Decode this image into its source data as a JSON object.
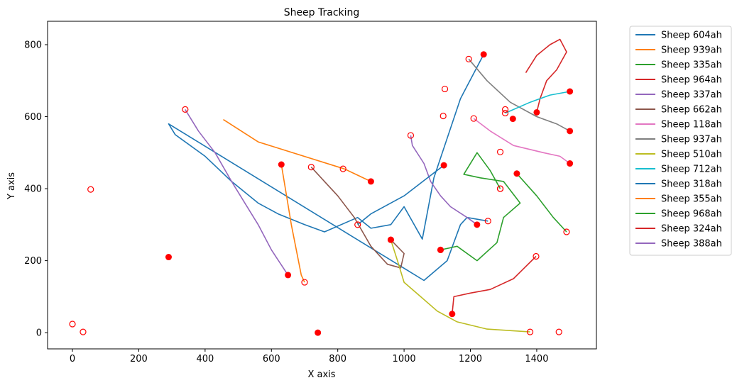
{
  "chart_data": {
    "type": "line",
    "title": "Sheep Tracking",
    "xlabel": "X axis",
    "ylabel": "Y axis",
    "xlim": [
      -75,
      1580
    ],
    "ylim": [
      -45,
      865
    ],
    "xticks": [
      0,
      200,
      400,
      600,
      800,
      1000,
      1200,
      1400
    ],
    "yticks": [
      0,
      200,
      400,
      600,
      800
    ],
    "xtick_labels": [
      "0",
      "200",
      "400",
      "600",
      "800",
      "1000",
      "1200",
      "1400"
    ],
    "ytick_labels": [
      "0",
      "200",
      "400",
      "600",
      "800"
    ],
    "grid": false,
    "legend_position": "outside-top-right",
    "marker_notes": "filled red circle = current position, hollow red circle = start position",
    "series": [
      {
        "name": "Sheep 604ah",
        "color": "#1f77b4",
        "points": [
          [
            1240,
            773
          ],
          [
            1170,
            650
          ],
          [
            1090,
            430
          ],
          [
            1055,
            260
          ],
          [
            1000,
            350
          ],
          [
            960,
            300
          ],
          [
            900,
            290
          ],
          [
            860,
            320
          ],
          [
            760,
            280
          ],
          [
            700,
            300
          ],
          [
            620,
            330
          ],
          [
            560,
            360
          ],
          [
            480,
            420
          ],
          [
            400,
            490
          ],
          [
            310,
            550
          ],
          [
            290,
            580
          ],
          [
            1060,
            145
          ],
          [
            1130,
            200
          ],
          [
            1170,
            300
          ],
          [
            1190,
            320
          ],
          [
            1253,
            310
          ]
        ],
        "current": [
          1240,
          773
        ],
        "start": [
          1253,
          310
        ]
      },
      {
        "name": "Sheep 939ah",
        "color": "#ff7f0e",
        "points": [
          [
            455,
            592
          ],
          [
            560,
            530
          ],
          [
            820,
            455
          ],
          [
            900,
            420
          ]
        ],
        "current": [
          900,
          420
        ],
        "start": [
          816,
          455
        ]
      },
      {
        "name": "Sheep 335ah",
        "color": "#2ca02c",
        "points": [
          [
            1110,
            230
          ],
          [
            1160,
            240
          ],
          [
            1220,
            200
          ],
          [
            1280,
            250
          ],
          [
            1300,
            320
          ],
          [
            1350,
            360
          ],
          [
            1300,
            420
          ],
          [
            1230,
            430
          ],
          [
            1180,
            440
          ],
          [
            1220,
            500
          ],
          [
            1260,
            450
          ],
          [
            1290,
            400
          ]
        ],
        "current": [
          1110,
          230
        ],
        "start": [
          1290,
          400
        ]
      },
      {
        "name": "Sheep 964ah",
        "color": "#d62728",
        "points": [
          [
            1367,
            722
          ],
          [
            1400,
            770
          ],
          [
            1440,
            800
          ],
          [
            1470,
            815
          ],
          [
            1490,
            780
          ],
          [
            1460,
            730
          ],
          [
            1430,
            700
          ],
          [
            1410,
            650
          ],
          [
            1400,
            612
          ]
        ],
        "current": [
          1400,
          612
        ],
        "start": [
          1305,
          620
        ]
      },
      {
        "name": "Sheep 337ah",
        "color": "#9467bd",
        "points": [
          [
            1020,
            548
          ],
          [
            1025,
            520
          ],
          [
            1060,
            470
          ],
          [
            1080,
            420
          ],
          [
            1110,
            380
          ],
          [
            1140,
            350
          ],
          [
            1190,
            320
          ],
          [
            1220,
            300
          ]
        ],
        "current": [
          1220,
          300
        ],
        "start": [
          1020,
          548
        ]
      },
      {
        "name": "Sheep 662ah",
        "color": "#8c564b",
        "points": [
          [
            960,
            258
          ],
          [
            1000,
            220
          ],
          [
            990,
            180
          ],
          [
            950,
            190
          ],
          [
            900,
            240
          ],
          [
            850,
            320
          ],
          [
            800,
            380
          ],
          [
            760,
            420
          ],
          [
            720,
            460
          ]
        ],
        "current": [
          960,
          258
        ],
        "start": [
          720,
          460
        ]
      },
      {
        "name": "Sheep 118ah",
        "color": "#e377c2",
        "points": [
          [
            1210,
            595
          ],
          [
            1260,
            560
          ],
          [
            1330,
            520
          ],
          [
            1420,
            500
          ],
          [
            1470,
            490
          ],
          [
            1500,
            470
          ]
        ],
        "current": [
          1500,
          470
        ],
        "start": [
          1210,
          595
        ]
      },
      {
        "name": "Sheep 937ah",
        "color": "#7f7f7f",
        "points": [
          [
            1195,
            760
          ],
          [
            1250,
            700
          ],
          [
            1320,
            640
          ],
          [
            1400,
            600
          ],
          [
            1460,
            580
          ],
          [
            1500,
            560
          ]
        ],
        "current": [
          1500,
          560
        ],
        "start": [
          1195,
          760
        ]
      },
      {
        "name": "Sheep 510ah",
        "color": "#bcbd22",
        "points": [
          [
            960,
            258
          ],
          [
            980,
            200
          ],
          [
            1000,
            140
          ],
          [
            1050,
            100
          ],
          [
            1100,
            60
          ],
          [
            1160,
            30
          ],
          [
            1250,
            10
          ],
          [
            1380,
            2
          ]
        ],
        "current": [
          960,
          258
        ],
        "start": [
          1380,
          2
        ]
      },
      {
        "name": "Sheep 712ah",
        "color": "#17becf",
        "points": [
          [
            1305,
            610
          ],
          [
            1380,
            640
          ],
          [
            1440,
            660
          ],
          [
            1500,
            670
          ]
        ],
        "current": [
          1500,
          670
        ],
        "start": [
          1305,
          610
        ]
      },
      {
        "name": "Sheep 318ah",
        "color": "#1f77b4",
        "points": [
          [
            1120,
            465
          ],
          [
            1000,
            380
          ],
          [
            900,
            330
          ],
          [
            860,
            300
          ]
        ],
        "current": [
          1120,
          465
        ],
        "start": [
          860,
          300
        ]
      },
      {
        "name": "Sheep 355ah",
        "color": "#ff7f0e",
        "points": [
          [
            630,
            467
          ],
          [
            660,
            300
          ],
          [
            690,
            160
          ],
          [
            700,
            140
          ]
        ],
        "current": [
          630,
          467
        ],
        "start": [
          700,
          140
        ]
      },
      {
        "name": "Sheep 968ah",
        "color": "#2ca02c",
        "points": [
          [
            1340,
            442
          ],
          [
            1400,
            380
          ],
          [
            1450,
            320
          ],
          [
            1490,
            280
          ]
        ],
        "current": [
          1340,
          442
        ],
        "start": [
          1490,
          280
        ]
      },
      {
        "name": "Sheep 324ah",
        "color": "#d62728",
        "points": [
          [
            1145,
            52
          ],
          [
            1150,
            100
          ],
          [
            1200,
            110
          ],
          [
            1260,
            120
          ],
          [
            1330,
            150
          ],
          [
            1398,
            212
          ]
        ],
        "current": [
          1145,
          52
        ],
        "start": [
          1398,
          212
        ]
      },
      {
        "name": "Sheep 388ah",
        "color": "#9467bd",
        "points": [
          [
            650,
            160
          ],
          [
            600,
            230
          ],
          [
            560,
            300
          ],
          [
            520,
            360
          ],
          [
            480,
            420
          ],
          [
            430,
            500
          ],
          [
            380,
            560
          ],
          [
            340,
            620
          ]
        ],
        "current": [
          650,
          160
        ],
        "start": [
          340,
          620
        ]
      }
    ],
    "extra_markers": {
      "current": [
        [
          290,
          210
        ],
        [
          740,
          0
        ],
        [
          1328,
          594
        ],
        [
          1110,
          230
        ]
      ],
      "start": [
        [
          55,
          398
        ],
        [
          0,
          24
        ],
        [
          32,
          2
        ],
        [
          1123,
          677
        ],
        [
          1118,
          602
        ],
        [
          1290,
          502
        ],
        [
          1467,
          2
        ],
        [
          1290,
          400
        ]
      ]
    }
  }
}
